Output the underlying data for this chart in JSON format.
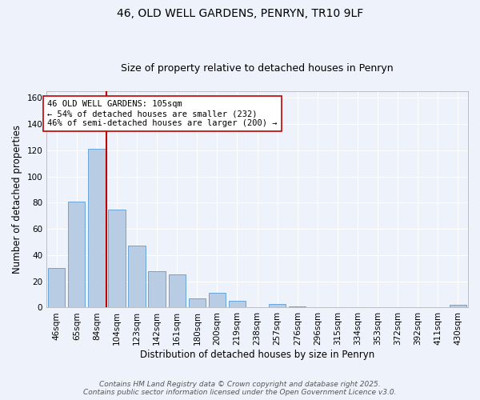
{
  "title_line1": "46, OLD WELL GARDENS, PENRYN, TR10 9LF",
  "title_line2": "Size of property relative to detached houses in Penryn",
  "xlabel": "Distribution of detached houses by size in Penryn",
  "ylabel": "Number of detached properties",
  "bar_labels": [
    "46sqm",
    "65sqm",
    "84sqm",
    "104sqm",
    "123sqm",
    "142sqm",
    "161sqm",
    "180sqm",
    "200sqm",
    "219sqm",
    "238sqm",
    "257sqm",
    "276sqm",
    "296sqm",
    "315sqm",
    "334sqm",
    "353sqm",
    "372sqm",
    "392sqm",
    "411sqm",
    "430sqm"
  ],
  "bar_values": [
    30,
    81,
    121,
    75,
    47,
    28,
    25,
    7,
    11,
    5,
    0,
    3,
    1,
    0,
    0,
    0,
    0,
    0,
    0,
    0,
    2
  ],
  "bar_color": "#b8cce4",
  "bar_edge_color": "#5b9bd5",
  "ylim": [
    0,
    165
  ],
  "yticks": [
    0,
    20,
    40,
    60,
    80,
    100,
    120,
    140,
    160
  ],
  "vline_color": "#c00000",
  "annotation_text": "46 OLD WELL GARDENS: 105sqm\n← 54% of detached houses are smaller (232)\n46% of semi-detached houses are larger (200) →",
  "annotation_box_color": "#ffffff",
  "annotation_box_edge": "#c00000",
  "footer1": "Contains HM Land Registry data © Crown copyright and database right 2025.",
  "footer2": "Contains public sector information licensed under the Open Government Licence v3.0.",
  "background_color": "#eef2fb",
  "grid_color": "#ffffff",
  "title_fontsize": 10,
  "subtitle_fontsize": 9,
  "axis_label_fontsize": 8.5,
  "tick_fontsize": 7.5,
  "annotation_fontsize": 7.5,
  "footer_fontsize": 6.5
}
